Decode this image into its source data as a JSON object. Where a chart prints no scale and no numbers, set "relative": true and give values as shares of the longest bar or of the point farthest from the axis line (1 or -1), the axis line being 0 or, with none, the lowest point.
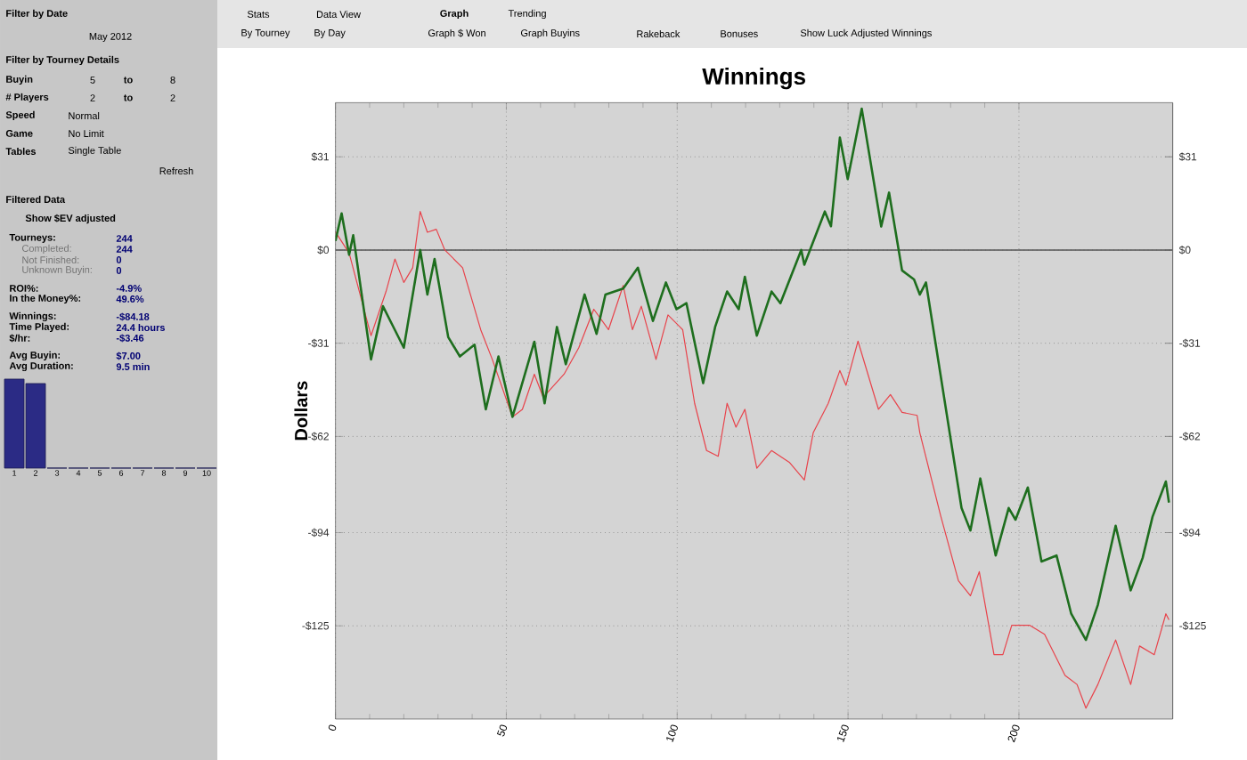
{
  "chart_data": [
    {
      "type": "other",
      "annotations": [
        "Filter by Date",
        "May 2012",
        "Filter by Tourney Details",
        "Buyin",
        "5",
        "to",
        "8",
        "# Players",
        "2",
        "to",
        "2",
        "Speed",
        "Normal",
        "Game",
        "No Limit",
        "Tables",
        "Single Table",
        "Refresh",
        "Filtered Data",
        "Show $EV adjusted",
        "Tourneys:",
        "244",
        "Completed:",
        "244",
        "Not Finished:",
        "0",
        "Unknown Buyin:",
        "0",
        "ROI%:",
        "-4.9%",
        "In the Money%:",
        "49.6%",
        "Winnings:",
        "-$84.18",
        "Time Played:",
        "24.4 hours",
        "$/hr:",
        "-$3.46",
        "Avg Buyin:",
        "$7.00",
        "Avg Duration:",
        "9.5 min",
        "Stats",
        "Data View",
        "Graph",
        "Trending",
        "By Tourney",
        "By Day",
        "Graph $ Won",
        "Graph Buyins",
        "Rakeback",
        "Bonuses",
        "Show Luck Adjusted Winnings"
      ]
    },
    {
      "type": "bar",
      "relative": true,
      "categories": [
        "1",
        "2",
        "3",
        "4",
        "5",
        "6",
        "7",
        "8",
        "9",
        "10"
      ],
      "color": "#2b2b85",
      "values": [
        1,
        0.95,
        0,
        0,
        0,
        0,
        0,
        0,
        0,
        0
      ]
    },
    {
      "type": "line",
      "title": "Winnings",
      "ylabel": "Dollars",
      "xlim": [
        0,
        245
      ],
      "xticks": [
        0,
        50,
        100,
        150,
        200
      ],
      "ylim": [
        -156,
        49
      ],
      "yticks": [
        {
          "value": 31,
          "label": "$31"
        },
        {
          "value": 0,
          "label": "$0"
        },
        {
          "value": -31,
          "label": "-$31"
        },
        {
          "value": -62,
          "label": "-$62"
        },
        {
          "value": -94,
          "label": "-$94"
        },
        {
          "value": -125,
          "label": "-$125"
        }
      ],
      "y2lim": [
        -156,
        49
      ],
      "y2ticks": [
        {
          "value": 31,
          "label": "$31"
        },
        {
          "value": 0,
          "label": "$0"
        },
        {
          "value": -31,
          "label": "-$31"
        },
        {
          "value": -62,
          "label": "-$62"
        },
        {
          "value": -94,
          "label": "-$94"
        },
        {
          "value": -125,
          "label": "-$125"
        }
      ],
      "grid": true,
      "ref_lines": [
        {
          "axis": "y",
          "value": 0,
          "color": "#555555",
          "line_style": "solid"
        }
      ],
      "series": [
        {
          "color": "#e8434b",
          "x": [
            0,
            4,
            10.4,
            14.8,
            17.4,
            20,
            22.6,
            24.8,
            26.9,
            29.5,
            32,
            37.2,
            42.5,
            45.9,
            51.8,
            54.7,
            58.2,
            60.8,
            66.9,
            71.2,
            75.6,
            79.9,
            84.2,
            86.9,
            89.5,
            93.8,
            97.3,
            101.6,
            105.1,
            108.6,
            112,
            114.6,
            117.2,
            119.8,
            123.3,
            127.6,
            132.8,
            137.2,
            139.8,
            144.2,
            147.6,
            149.4,
            152.9,
            158.9,
            162.4,
            165.8,
            170.2,
            171,
            177.1,
            182.3,
            185.8,
            188.4,
            192.7,
            195.3,
            197.9,
            203.1,
            207.5,
            213.5,
            217,
            219.6,
            223.1,
            228.3,
            232.7,
            235.3,
            239.6,
            243,
            243.9
          ],
          "values": [
            6,
            -1,
            -28.5,
            -13.8,
            -3,
            -10.8,
            -5.9,
            12.8,
            5.9,
            6.9,
            0,
            -5.9,
            -26.5,
            -36.4,
            -55.5,
            -53,
            -41.3,
            -49,
            -41.3,
            -32.5,
            -19.7,
            -26.5,
            -11.8,
            -26.5,
            -18.7,
            -36.4,
            -21.6,
            -26.5,
            -51,
            -66.7,
            -68.6,
            -51,
            -58.9,
            -53,
            -72.6,
            -66.7,
            -70.6,
            -76.5,
            -60.8,
            -51,
            -40.1,
            -45,
            -30.3,
            -53,
            -48.1,
            -54,
            -55,
            -60.8,
            -88.4,
            -110,
            -115,
            -107,
            -134.6,
            -134.6,
            -124.8,
            -124.8,
            -127.8,
            -141.5,
            -144.5,
            -152.4,
            -144.5,
            -129.7,
            -144.5,
            -131.7,
            -134.6,
            -121,
            -123
          ]
        },
        {
          "color": "#1e6e1e",
          "x": [
            0,
            1.8,
            4,
            5.2,
            10.4,
            13.9,
            16.5,
            20,
            24.8,
            26.9,
            29,
            33,
            36.4,
            40.7,
            44,
            47.7,
            51.8,
            58.2,
            61.2,
            64.8,
            67.4,
            72.9,
            76.4,
            79,
            84.2,
            88.5,
            92.9,
            96.7,
            99.8,
            102.7,
            107.6,
            111.1,
            114.6,
            118,
            119.8,
            123.3,
            127.6,
            130.2,
            136.3,
            137.2,
            143.2,
            145,
            147.6,
            149.9,
            154,
            159.7,
            162,
            165.8,
            169.3,
            171,
            172.8,
            183.2,
            185.8,
            188.7,
            193.2,
            197,
            199,
            202.6,
            206.6,
            211,
            215.3,
            219.6,
            223.1,
            228.3,
            232.7,
            236.2,
            239.1,
            243,
            243.9
          ],
          "values": [
            3,
            12.2,
            -1.6,
            4.9,
            -36.4,
            -18.7,
            -24.6,
            -32.5,
            0,
            -14.8,
            -3,
            -29,
            -35.4,
            -31.5,
            -53,
            -35.4,
            -55.5,
            -30.5,
            -51,
            -25.6,
            -38,
            -14.8,
            -27.9,
            -14.8,
            -12.8,
            -5.9,
            -23.6,
            -10.8,
            -19.7,
            -17.7,
            -44.3,
            -25.6,
            -13.8,
            -19.7,
            -8.9,
            -28.5,
            -13.8,
            -17.7,
            0,
            -4.9,
            12.8,
            7.9,
            37.4,
            23.6,
            47,
            7.8,
            19.1,
            -6.8,
            -9.8,
            -14.8,
            -10.8,
            -85.8,
            -93.3,
            -76,
            -101.6,
            -85.8,
            -89.7,
            -79,
            -103.6,
            -101.6,
            -121,
            -129.7,
            -118,
            -91.7,
            -113.2,
            -102.4,
            -88.7,
            -77,
            -84
          ]
        }
      ]
    }
  ]
}
